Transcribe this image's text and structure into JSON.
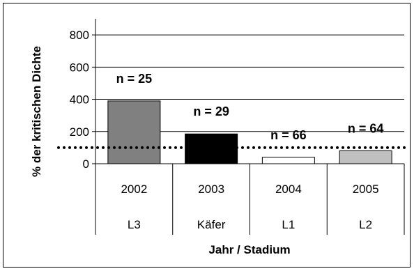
{
  "chart_data": {
    "type": "bar",
    "title": "",
    "xlabel": "Jahr / Stadium",
    "ylabel": "% der kritischen Dichte",
    "ylim": [
      0,
      900
    ],
    "yticks": [
      0,
      200,
      400,
      600,
      800
    ],
    "grid": true,
    "legend": "none",
    "categories": [
      "2002",
      "2003",
      "2004",
      "2005"
    ],
    "stages": [
      "L3",
      "Käfer",
      "L1",
      "L2"
    ],
    "values": [
      390,
      185,
      40,
      80
    ],
    "sample_labels": [
      "n = 25",
      "n = 29",
      "n = 66",
      "n = 64"
    ],
    "bar_colors": [
      "#808080",
      "#000000",
      "#ffffff",
      "#c0c0c0"
    ],
    "reference_line": 100
  }
}
